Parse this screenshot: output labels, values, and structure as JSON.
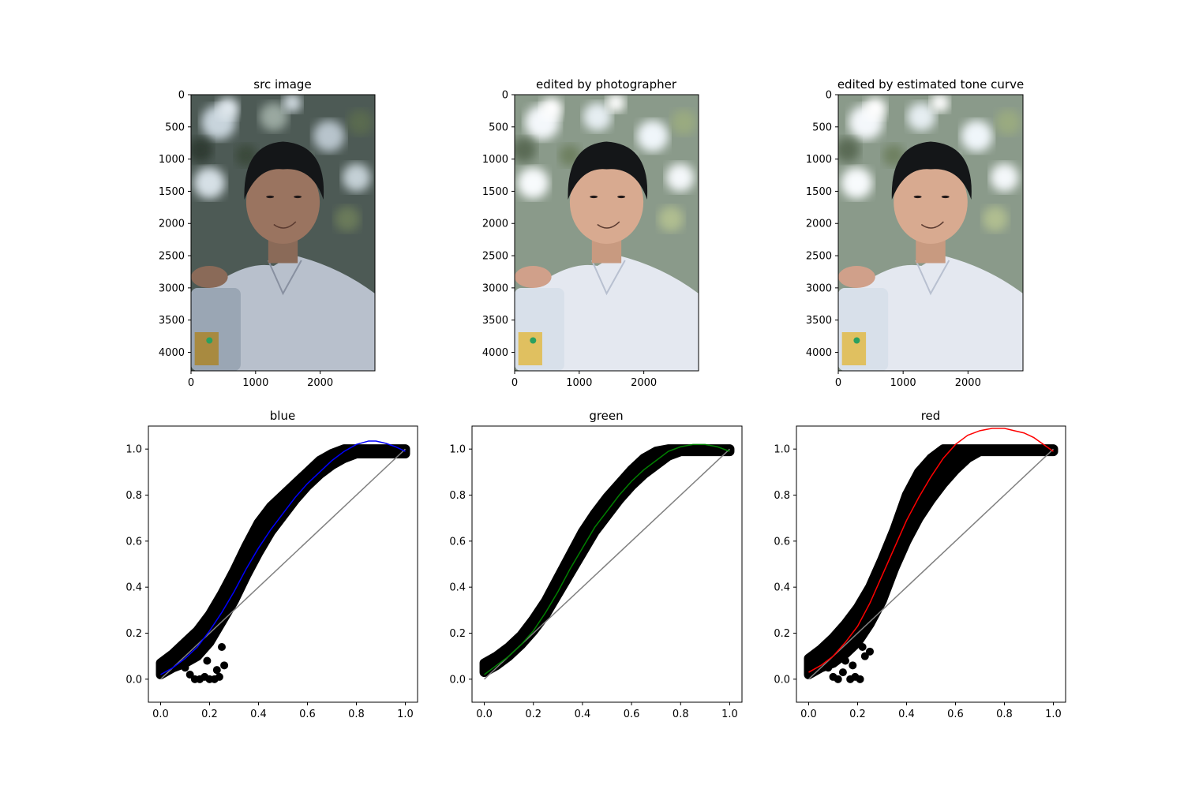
{
  "images": [
    {
      "title": "src image",
      "xticks": [
        "0",
        "1000",
        "2000"
      ],
      "yticks": [
        "0",
        "500",
        "1000",
        "1500",
        "2000",
        "2500",
        "3000",
        "3500",
        "4000"
      ],
      "xlim": [
        0,
        2848
      ],
      "ylim": [
        4288,
        0
      ],
      "brightness": "dark"
    },
    {
      "title": "edited by photographer",
      "xticks": [
        "0",
        "1000",
        "2000"
      ],
      "yticks": [
        "0",
        "500",
        "1000",
        "1500",
        "2000",
        "2500",
        "3000",
        "3500",
        "4000"
      ],
      "xlim": [
        0,
        2848
      ],
      "ylim": [
        4288,
        0
      ],
      "brightness": "bright"
    },
    {
      "title": "edited by estimated tone curve",
      "xticks": [
        "0",
        "1000",
        "2000"
      ],
      "yticks": [
        "0",
        "500",
        "1000",
        "1500",
        "2000",
        "2500",
        "3000",
        "3500",
        "4000"
      ],
      "xlim": [
        0,
        2848
      ],
      "ylim": [
        4288,
        0
      ],
      "brightness": "bright"
    }
  ],
  "chart_data": [
    {
      "type": "scatter",
      "title": "blue",
      "xlim": [
        -0.05,
        1.05
      ],
      "ylim": [
        -0.1,
        1.1
      ],
      "xticks": [
        "0.0",
        "0.2",
        "0.4",
        "0.6",
        "0.8",
        "1.0"
      ],
      "yticks": [
        "0.0",
        "0.2",
        "0.4",
        "0.6",
        "0.8",
        "1.0"
      ],
      "curve_color": "#0000ff",
      "scatter_color": "#000000",
      "identity_color": "#808080",
      "identity_line": {
        "x": [
          0,
          1
        ],
        "y": [
          0,
          1
        ]
      },
      "scatter_band": {
        "x": [
          0.0,
          0.05,
          0.1,
          0.15,
          0.2,
          0.25,
          0.3,
          0.35,
          0.4,
          0.45,
          0.5,
          0.55,
          0.6,
          0.65,
          0.7,
          0.75,
          0.8,
          0.85,
          0.9,
          0.95,
          1.0
        ],
        "upper": [
          0.07,
          0.11,
          0.16,
          0.21,
          0.28,
          0.37,
          0.47,
          0.58,
          0.68,
          0.75,
          0.8,
          0.85,
          0.9,
          0.95,
          0.98,
          1.0,
          1.0,
          1.0,
          1.0,
          1.0,
          1.0
        ],
        "lower": [
          0.02,
          0.05,
          0.07,
          0.1,
          0.16,
          0.25,
          0.34,
          0.45,
          0.55,
          0.64,
          0.71,
          0.78,
          0.84,
          0.89,
          0.93,
          0.96,
          0.98,
          0.98,
          0.98,
          0.98,
          0.98
        ]
      },
      "outliers": {
        "x": [
          0.1,
          0.12,
          0.14,
          0.16,
          0.18,
          0.2,
          0.22,
          0.24,
          0.26,
          0.11,
          0.15,
          0.19,
          0.23,
          0.25
        ],
        "y": [
          0.05,
          0.02,
          0.0,
          0.0,
          0.01,
          0.0,
          0.0,
          0.01,
          0.06,
          0.1,
          0.12,
          0.08,
          0.04,
          0.14
        ]
      },
      "fitted_curve": {
        "x": [
          0.0,
          0.05,
          0.1,
          0.15,
          0.2,
          0.25,
          0.3,
          0.35,
          0.4,
          0.45,
          0.5,
          0.55,
          0.6,
          0.65,
          0.7,
          0.75,
          0.8,
          0.85,
          0.88,
          0.92,
          0.96,
          1.0
        ],
        "y": [
          0.02,
          0.05,
          0.09,
          0.14,
          0.21,
          0.29,
          0.38,
          0.48,
          0.57,
          0.65,
          0.72,
          0.79,
          0.85,
          0.9,
          0.95,
          0.99,
          1.02,
          1.035,
          1.035,
          1.025,
          1.01,
          0.99
        ]
      }
    },
    {
      "type": "scatter",
      "title": "green",
      "xlim": [
        -0.05,
        1.05
      ],
      "ylim": [
        -0.1,
        1.1
      ],
      "xticks": [
        "0.0",
        "0.2",
        "0.4",
        "0.6",
        "0.8",
        "1.0"
      ],
      "yticks": [
        "0.0",
        "0.2",
        "0.4",
        "0.6",
        "0.8",
        "1.0"
      ],
      "curve_color": "#008000",
      "scatter_color": "#000000",
      "identity_color": "#808080",
      "identity_line": {
        "x": [
          0,
          1
        ],
        "y": [
          0,
          1
        ]
      },
      "scatter_band": {
        "x": [
          0.0,
          0.05,
          0.1,
          0.15,
          0.2,
          0.25,
          0.3,
          0.35,
          0.4,
          0.45,
          0.5,
          0.55,
          0.6,
          0.65,
          0.7,
          0.75,
          0.8,
          0.85,
          0.9,
          0.95,
          1.0
        ],
        "upper": [
          0.07,
          0.1,
          0.14,
          0.19,
          0.26,
          0.34,
          0.44,
          0.54,
          0.64,
          0.72,
          0.79,
          0.85,
          0.91,
          0.96,
          0.99,
          1.0,
          1.0,
          1.0,
          1.0,
          1.0,
          1.0
        ],
        "lower": [
          0.03,
          0.06,
          0.1,
          0.15,
          0.21,
          0.28,
          0.37,
          0.46,
          0.55,
          0.64,
          0.71,
          0.78,
          0.84,
          0.89,
          0.93,
          0.97,
          0.99,
          0.99,
          0.99,
          0.99,
          0.99
        ]
      },
      "outliers": {
        "x": [],
        "y": []
      },
      "fitted_curve": {
        "x": [
          0.0,
          0.05,
          0.1,
          0.15,
          0.2,
          0.25,
          0.3,
          0.35,
          0.4,
          0.45,
          0.5,
          0.55,
          0.6,
          0.65,
          0.7,
          0.75,
          0.8,
          0.85,
          0.9,
          0.95,
          1.0
        ],
        "y": [
          0.02,
          0.06,
          0.1,
          0.15,
          0.21,
          0.29,
          0.38,
          0.48,
          0.57,
          0.66,
          0.73,
          0.8,
          0.86,
          0.91,
          0.95,
          0.99,
          1.01,
          1.02,
          1.02,
          1.01,
          0.99
        ]
      }
    },
    {
      "type": "scatter",
      "title": "red",
      "xlim": [
        -0.05,
        1.05
      ],
      "ylim": [
        -0.1,
        1.1
      ],
      "xticks": [
        "0.0",
        "0.2",
        "0.4",
        "0.6",
        "0.8",
        "1.0"
      ],
      "yticks": [
        "0.0",
        "0.2",
        "0.4",
        "0.6",
        "0.8",
        "1.0"
      ],
      "curve_color": "#ff0000",
      "scatter_color": "#000000",
      "identity_color": "#808080",
      "identity_line": {
        "x": [
          0,
          1
        ],
        "y": [
          0,
          1
        ]
      },
      "scatter_band": {
        "x": [
          0.0,
          0.05,
          0.1,
          0.15,
          0.2,
          0.25,
          0.3,
          0.35,
          0.4,
          0.45,
          0.5,
          0.55,
          0.6,
          0.65,
          0.7,
          0.75,
          0.8,
          0.85,
          0.9,
          0.95,
          1.0
        ],
        "upper": [
          0.09,
          0.13,
          0.18,
          0.24,
          0.31,
          0.4,
          0.52,
          0.65,
          0.8,
          0.9,
          0.96,
          1.0,
          1.0,
          1.0,
          1.0,
          1.0,
          1.0,
          1.0,
          1.0,
          1.0,
          1.0
        ],
        "lower": [
          0.02,
          0.05,
          0.07,
          0.11,
          0.16,
          0.24,
          0.34,
          0.48,
          0.6,
          0.7,
          0.78,
          0.85,
          0.91,
          0.96,
          0.99,
          0.99,
          0.99,
          0.99,
          0.99,
          0.99,
          0.99
        ]
      },
      "outliers": {
        "x": [
          0.08,
          0.1,
          0.12,
          0.14,
          0.17,
          0.19,
          0.21,
          0.23,
          0.22,
          0.25,
          0.18,
          0.15
        ],
        "y": [
          0.05,
          0.01,
          0.0,
          0.03,
          0.0,
          0.01,
          0.0,
          0.1,
          0.14,
          0.12,
          0.06,
          0.08
        ]
      },
      "fitted_curve": {
        "x": [
          0.0,
          0.05,
          0.1,
          0.15,
          0.2,
          0.25,
          0.3,
          0.35,
          0.4,
          0.45,
          0.5,
          0.55,
          0.6,
          0.65,
          0.7,
          0.75,
          0.8,
          0.84,
          0.88,
          0.92,
          0.96,
          1.0
        ],
        "y": [
          0.03,
          0.06,
          0.1,
          0.16,
          0.23,
          0.33,
          0.45,
          0.57,
          0.69,
          0.79,
          0.88,
          0.96,
          1.02,
          1.06,
          1.08,
          1.09,
          1.09,
          1.08,
          1.07,
          1.05,
          1.02,
          0.99
        ]
      }
    }
  ]
}
